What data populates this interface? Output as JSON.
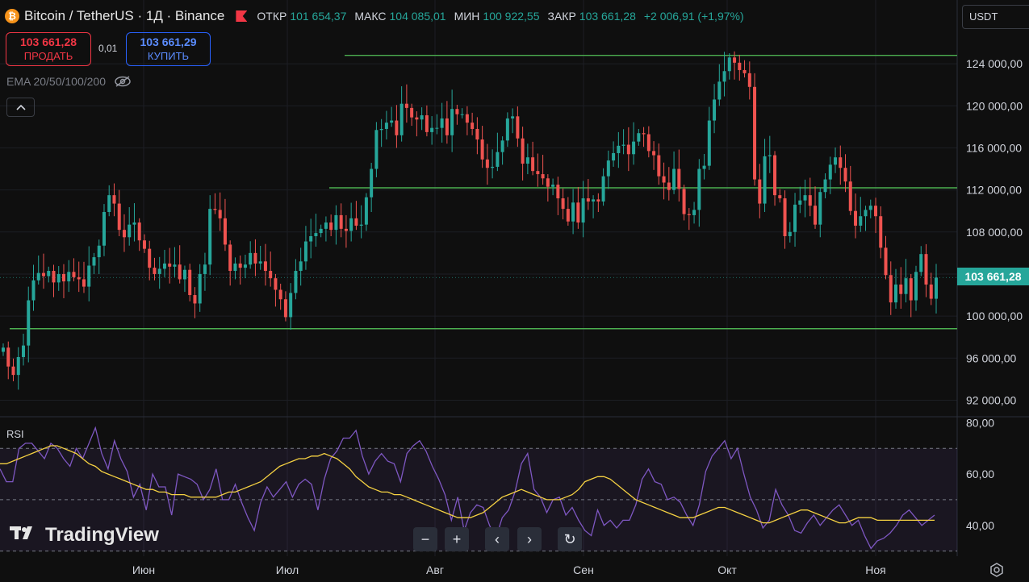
{
  "header": {
    "coin_icon": "₿",
    "title": "Bitcoin / TetherUS · 1Д · Binance",
    "ohlc": [
      {
        "label": "ОТКР",
        "value": "101 654,37"
      },
      {
        "label": "МАКС",
        "value": "104 085,01"
      },
      {
        "label": "МИН",
        "value": "100 922,55"
      },
      {
        "label": "ЗАКР",
        "value": "103 661,28"
      }
    ],
    "change": "+2 006,91 (+1,97%)"
  },
  "trade": {
    "sell_price": "103 661,28",
    "sell_label": "ПРОДАТЬ",
    "spread": "0,01",
    "buy_price": "103 661,29",
    "buy_label": "КУПИТЬ"
  },
  "indicator": {
    "ema_label": "EMA 20/50/100/200"
  },
  "currency": "USDT",
  "current_price_label": "103 661,28",
  "rsi_label": "RSI",
  "logo_text": "TradingView",
  "nav_buttons": [
    "−",
    "+",
    "‹",
    "›",
    "↻"
  ],
  "colors": {
    "up": "#26a69a",
    "down": "#ef5350",
    "level_line": "#4caf50",
    "rsi_line": "#7e57c2",
    "rsi_ma": "#f5d142",
    "background": "#0f0f0f"
  },
  "icons": [
    "bitcoin-icon",
    "flag-icon",
    "eye-off-icon",
    "chevron-up-icon",
    "reset-icon",
    "settings-icon"
  ],
  "chart_data": [
    {
      "type": "candlestick",
      "title": "Bitcoin / TetherUS · 1Д · Binance",
      "x_ticks": [
        "Июн",
        "Июл",
        "Авг",
        "Сен",
        "Окт",
        "Ноя"
      ],
      "y_ticks": [
        "124 000,00",
        "120 000,00",
        "116 000,00",
        "112 000,00",
        "108 000,00",
        "100 000,00",
        "96 000,00",
        "92 000,00"
      ],
      "ylim": [
        90500,
        127000
      ],
      "levels": [
        124800,
        112200,
        98800
      ],
      "last_price": 103661.28,
      "closes": [
        97000,
        95200,
        94400,
        96100,
        97200,
        101500,
        103400,
        104100,
        103800,
        104300,
        103200,
        104000,
        103300,
        104200,
        103700,
        103500,
        102800,
        104800,
        105600,
        106700,
        109900,
        111500,
        110700,
        108200,
        107500,
        108700,
        108900,
        107200,
        106400,
        104600,
        104000,
        104500,
        105000,
        104700,
        104900,
        103500,
        104400,
        102000,
        101200,
        104000,
        104900,
        110200,
        110100,
        109300,
        106800,
        104300,
        105000,
        104600,
        104900,
        106000,
        105000,
        105200,
        104300,
        103600,
        102500,
        101600,
        99900,
        102200,
        104300,
        105200,
        107100,
        107600,
        107900,
        108300,
        108900,
        108200,
        109600,
        108300,
        108100,
        109300,
        108600,
        108700,
        111300,
        114000,
        117700,
        117800,
        118400,
        118600,
        117200,
        120200,
        119800,
        118900,
        118700,
        119100,
        117500,
        117900,
        117900,
        118800,
        117200,
        119700,
        119200,
        119200,
        118400,
        117800,
        116800,
        114900,
        114100,
        114200,
        115600,
        116700,
        118800,
        119000,
        116900,
        114500,
        115100,
        113800,
        113500,
        113100,
        112300,
        112500,
        111200,
        110200,
        109000,
        110800,
        108900,
        111200,
        110900,
        111100,
        110900,
        113300,
        114800,
        115500,
        116200,
        116300,
        115400,
        116600,
        117400,
        117300,
        115700,
        115300,
        113300,
        112700,
        112000,
        114000,
        112100,
        109700,
        109600,
        110100,
        114000,
        114300,
        118600,
        120600,
        122300,
        123300,
        124600,
        124100,
        123400,
        123100,
        121800,
        113000,
        110700,
        115200,
        115300,
        111500,
        111200,
        107600,
        108000,
        110600,
        111000,
        111500,
        110500,
        108700,
        111800,
        113000,
        114400,
        115100,
        114100,
        112800,
        110000,
        108600,
        109500,
        110100,
        110500,
        109500,
        106500,
        103900,
        101300,
        103000,
        102100,
        103600,
        101500,
        104200,
        105900,
        103000,
        101650,
        103661
      ]
    },
    {
      "type": "line",
      "title": "RSI",
      "y_ticks": [
        "80,00",
        "60,00",
        "40,00"
      ],
      "ylim": [
        28,
        82
      ],
      "dashed_levels": [
        70,
        50,
        30
      ],
      "series": [
        {
          "name": "RSI",
          "values": [
            62,
            57,
            57,
            70,
            72,
            72,
            69,
            66,
            72,
            70,
            66,
            63,
            70,
            66,
            72,
            78,
            68,
            62,
            73,
            66,
            61,
            51,
            56,
            46,
            60,
            55,
            55,
            44,
            60,
            59,
            58,
            56,
            50,
            54,
            62,
            50,
            50,
            56,
            49,
            43,
            38,
            49,
            55,
            51,
            54,
            57,
            51,
            56,
            58,
            56,
            46,
            58,
            66,
            69,
            74,
            74,
            77,
            67,
            60,
            65,
            68,
            65,
            64,
            57,
            68,
            71,
            73,
            69,
            63,
            58,
            52,
            42,
            51,
            38,
            45,
            48,
            47,
            40,
            35,
            43,
            46,
            53,
            64,
            68,
            54,
            51,
            45,
            50,
            51,
            44,
            47,
            42,
            38,
            36,
            46,
            40,
            42,
            39,
            42,
            42,
            48,
            58,
            62,
            57,
            56,
            50,
            51,
            49,
            44,
            40,
            48,
            61,
            67,
            70,
            73,
            66,
            70,
            60,
            51,
            46,
            39,
            42,
            54,
            48,
            44,
            38,
            37,
            41,
            44,
            40,
            43,
            46,
            48,
            44,
            40,
            42,
            36,
            31,
            34,
            35,
            37,
            40,
            44,
            46,
            43,
            40,
            42,
            44
          ]
        },
        {
          "name": "RSI MA",
          "values": [
            64,
            64,
            65,
            66,
            67,
            68,
            69,
            70,
            71,
            71,
            70,
            69,
            68,
            66,
            64,
            63,
            61,
            60,
            59,
            58,
            57,
            56,
            55,
            54,
            54,
            53,
            53,
            52,
            52,
            52,
            51,
            51,
            51,
            51,
            51,
            52,
            53,
            53,
            54,
            55,
            56,
            57,
            59,
            61,
            63,
            64,
            65,
            66,
            66,
            67,
            67,
            68,
            67,
            66,
            64,
            62,
            59,
            57,
            55,
            54,
            53,
            53,
            52,
            52,
            51,
            50,
            49,
            48,
            47,
            46,
            45,
            44,
            43,
            43,
            43,
            44,
            45,
            47,
            49,
            51,
            52,
            53,
            54,
            53,
            52,
            51,
            50,
            50,
            50,
            51,
            52,
            54,
            57,
            58,
            59,
            59,
            58,
            56,
            54,
            52,
            50,
            49,
            48,
            47,
            46,
            45,
            44,
            43,
            43,
            43,
            44,
            45,
            46,
            47,
            47,
            46,
            45,
            44,
            43,
            42,
            41,
            41,
            42,
            43,
            44,
            45,
            46,
            46,
            45,
            44,
            43,
            42,
            41,
            41,
            42,
            43,
            43,
            43,
            42,
            42,
            42,
            42,
            42,
            42,
            42,
            42,
            42,
            42
          ]
        }
      ]
    }
  ]
}
